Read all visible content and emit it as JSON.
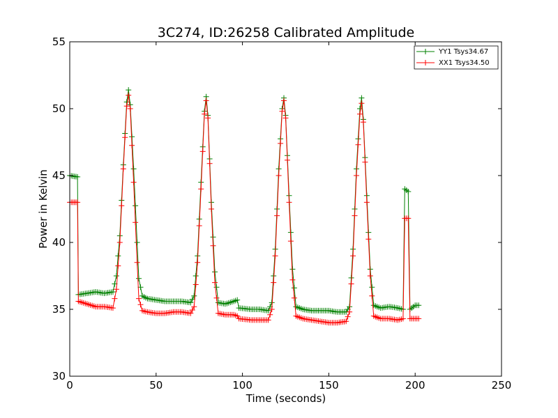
{
  "chart_data": {
    "type": "line",
    "title": "3C274, ID:26258 Calibrated Amplitude",
    "xlabel": "Time (seconds)",
    "ylabel": "Power in Kelvin",
    "xlim": [
      0,
      250
    ],
    "ylim": [
      30,
      55
    ],
    "xticks": [
      "0",
      "50",
      "100",
      "150",
      "200",
      "250"
    ],
    "yticks": [
      "30",
      "35",
      "40",
      "45",
      "50",
      "55"
    ],
    "grid": false,
    "legend_position": "top-right",
    "marker": "+",
    "series": [
      {
        "name": "YY1 Tsys34.67",
        "color": "#008000",
        "points": [
          [
            0,
            45.0
          ],
          [
            4.5,
            44.9
          ],
          [
            5,
            36.1
          ],
          [
            10,
            36.2
          ],
          [
            15,
            36.3
          ],
          [
            20,
            36.2
          ],
          [
            25,
            36.3
          ],
          [
            27,
            37.5
          ],
          [
            29,
            40.5
          ],
          [
            31,
            45.8
          ],
          [
            33,
            50.5
          ],
          [
            34,
            51.4
          ],
          [
            35,
            50.3
          ],
          [
            37,
            45.5
          ],
          [
            39,
            40
          ],
          [
            40,
            37.3
          ],
          [
            42,
            36.0
          ],
          [
            45,
            35.8
          ],
          [
            50,
            35.7
          ],
          [
            55,
            35.6
          ],
          [
            60,
            35.6
          ],
          [
            65,
            35.6
          ],
          [
            70,
            35.5
          ],
          [
            72,
            36.0
          ],
          [
            74,
            39.0
          ],
          [
            76,
            44.5
          ],
          [
            78,
            49.8
          ],
          [
            79,
            50.9
          ],
          [
            80,
            49.5
          ],
          [
            82,
            43.0
          ],
          [
            84,
            37.8
          ],
          [
            86,
            35.5
          ],
          [
            90,
            35.4
          ],
          [
            95,
            35.6
          ],
          [
            97,
            35.7
          ],
          [
            98,
            35.1
          ],
          [
            105,
            35.0
          ],
          [
            110,
            35.0
          ],
          [
            115,
            34.9
          ],
          [
            117,
            35.5
          ],
          [
            119,
            39.5
          ],
          [
            121,
            45.5
          ],
          [
            123,
            50.0
          ],
          [
            124,
            50.8
          ],
          [
            125,
            49.5
          ],
          [
            127,
            43.5
          ],
          [
            129,
            38.0
          ],
          [
            131,
            35.2
          ],
          [
            135,
            35.0
          ],
          [
            140,
            34.9
          ],
          [
            145,
            34.9
          ],
          [
            150,
            34.9
          ],
          [
            155,
            34.8
          ],
          [
            160,
            34.8
          ],
          [
            162,
            35.2
          ],
          [
            164,
            39.5
          ],
          [
            166,
            45.5
          ],
          [
            168,
            50.0
          ],
          [
            169,
            50.8
          ],
          [
            170,
            49.2
          ],
          [
            172,
            43.5
          ],
          [
            174,
            38.0
          ],
          [
            176,
            35.3
          ],
          [
            180,
            35.1
          ],
          [
            185,
            35.2
          ],
          [
            190,
            35.1
          ],
          [
            193,
            35.0
          ],
          [
            194,
            44.0
          ],
          [
            196,
            43.8
          ],
          [
            197,
            35.0
          ],
          [
            200,
            35.3
          ],
          [
            202,
            35.3
          ]
        ]
      },
      {
        "name": "XX1 Tsys34.50",
        "color": "#ff0000",
        "points": [
          [
            0,
            43.0
          ],
          [
            4.5,
            43.0
          ],
          [
            5,
            35.6
          ],
          [
            10,
            35.4
          ],
          [
            15,
            35.2
          ],
          [
            20,
            35.2
          ],
          [
            25,
            35.1
          ],
          [
            27,
            36.5
          ],
          [
            29,
            40.0
          ],
          [
            31,
            45.5
          ],
          [
            33,
            50.2
          ],
          [
            34,
            51.0
          ],
          [
            35,
            50.0
          ],
          [
            37,
            44.5
          ],
          [
            39,
            38.5
          ],
          [
            40,
            35.8
          ],
          [
            42,
            34.9
          ],
          [
            45,
            34.8
          ],
          [
            50,
            34.7
          ],
          [
            55,
            34.7
          ],
          [
            60,
            34.8
          ],
          [
            65,
            34.8
          ],
          [
            70,
            34.7
          ],
          [
            72,
            35.2
          ],
          [
            74,
            38.5
          ],
          [
            76,
            44.0
          ],
          [
            78,
            49.6
          ],
          [
            79,
            50.6
          ],
          [
            80,
            49.3
          ],
          [
            82,
            42.5
          ],
          [
            84,
            37.0
          ],
          [
            86,
            34.7
          ],
          [
            90,
            34.6
          ],
          [
            95,
            34.6
          ],
          [
            97,
            34.5
          ],
          [
            98,
            34.3
          ],
          [
            105,
            34.2
          ],
          [
            110,
            34.2
          ],
          [
            115,
            34.2
          ],
          [
            117,
            35.0
          ],
          [
            119,
            39.0
          ],
          [
            121,
            45.0
          ],
          [
            123,
            49.8
          ],
          [
            124,
            50.6
          ],
          [
            125,
            49.3
          ],
          [
            127,
            43.0
          ],
          [
            129,
            37.2
          ],
          [
            131,
            34.5
          ],
          [
            135,
            34.3
          ],
          [
            140,
            34.2
          ],
          [
            145,
            34.1
          ],
          [
            150,
            34.0
          ],
          [
            155,
            34.0
          ],
          [
            160,
            34.1
          ],
          [
            162,
            34.8
          ],
          [
            164,
            39.0
          ],
          [
            166,
            45.0
          ],
          [
            168,
            49.6
          ],
          [
            169,
            50.4
          ],
          [
            170,
            49.0
          ],
          [
            172,
            43.0
          ],
          [
            174,
            37.5
          ],
          [
            176,
            34.5
          ],
          [
            180,
            34.3
          ],
          [
            185,
            34.3
          ],
          [
            190,
            34.2
          ],
          [
            193,
            34.3
          ],
          [
            194,
            41.8
          ],
          [
            196,
            41.8
          ],
          [
            197,
            34.3
          ],
          [
            200,
            34.3
          ],
          [
            202,
            34.3
          ]
        ]
      }
    ]
  }
}
